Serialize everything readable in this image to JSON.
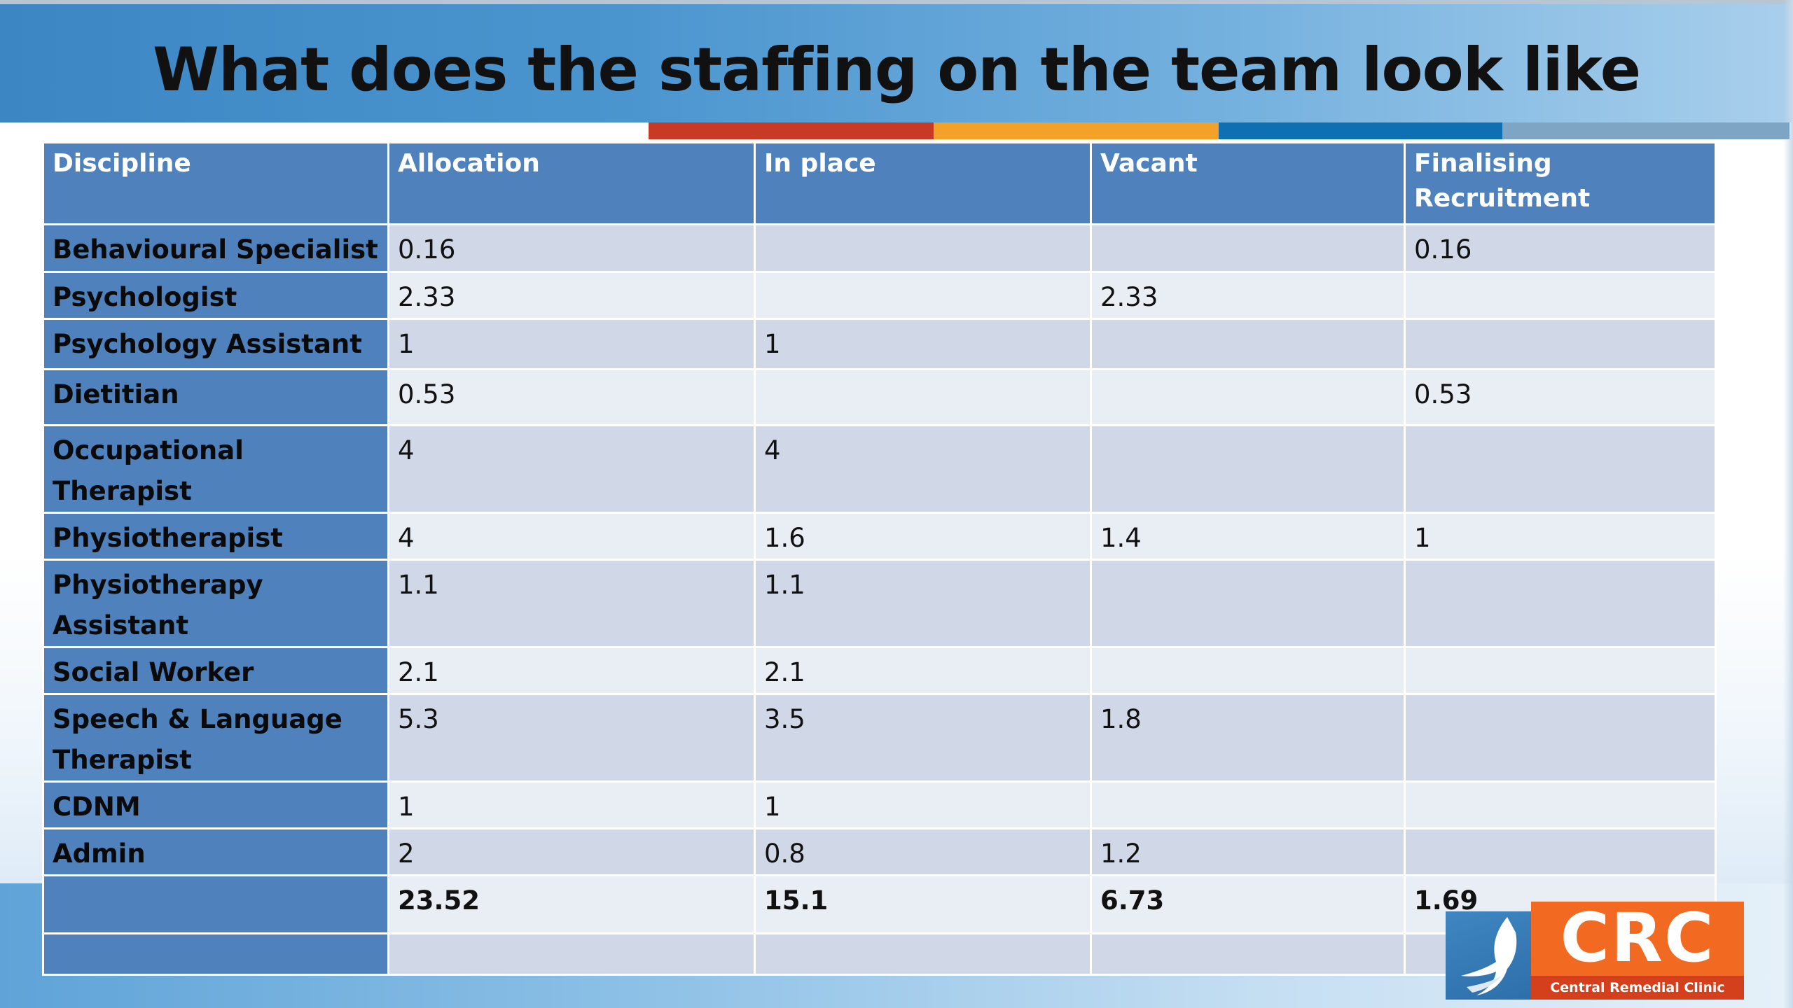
{
  "slide": {
    "title": "What does the staffing on the team look like"
  },
  "table": {
    "headers": [
      "Discipline",
      "Allocation",
      "In place",
      "Vacant",
      "Finalising Recruitment"
    ],
    "rows": [
      [
        "Behavioural Specialist",
        "0.16",
        "",
        "",
        "0.16"
      ],
      [
        "Psychologist",
        "2.33",
        "",
        "2.33",
        ""
      ],
      [
        "Psychology Assistant",
        "1",
        "1",
        "",
        ""
      ],
      [
        "Dietitian",
        "0.53",
        "",
        "",
        "0.53"
      ],
      [
        "Occupational Therapist",
        "4",
        "4",
        "",
        ""
      ],
      [
        "Physiotherapist",
        "4",
        "1.6",
        "1.4",
        "1"
      ],
      [
        "Physiotherapy Assistant",
        "1.1",
        "1.1",
        "",
        ""
      ],
      [
        "Social Worker",
        "2.1",
        "2.1",
        "",
        ""
      ],
      [
        "Speech & Language Therapist",
        "5.3",
        "3.5",
        "1.8",
        ""
      ],
      [
        "CDNM",
        "1",
        "1",
        "",
        ""
      ],
      [
        "Admin",
        "2",
        "0.8",
        "1.2",
        ""
      ],
      [
        "",
        "23.52",
        "15.1",
        "6.73",
        "1.69"
      ],
      [
        "",
        "",
        "",
        "",
        ""
      ]
    ]
  },
  "logo": {
    "letters": "CRC",
    "subtitle": "Central Remedial Clinic",
    "icon": "bird-icon"
  },
  "colors": {
    "header_blue": "#4f81bd",
    "row_light": "#e9edf4",
    "row_dark": "#d0d8e8",
    "accent_red": "#c93a25",
    "accent_orange": "#f4a12a",
    "accent_blue": "#0f6fb3",
    "logo_orange": "#f26a21"
  }
}
